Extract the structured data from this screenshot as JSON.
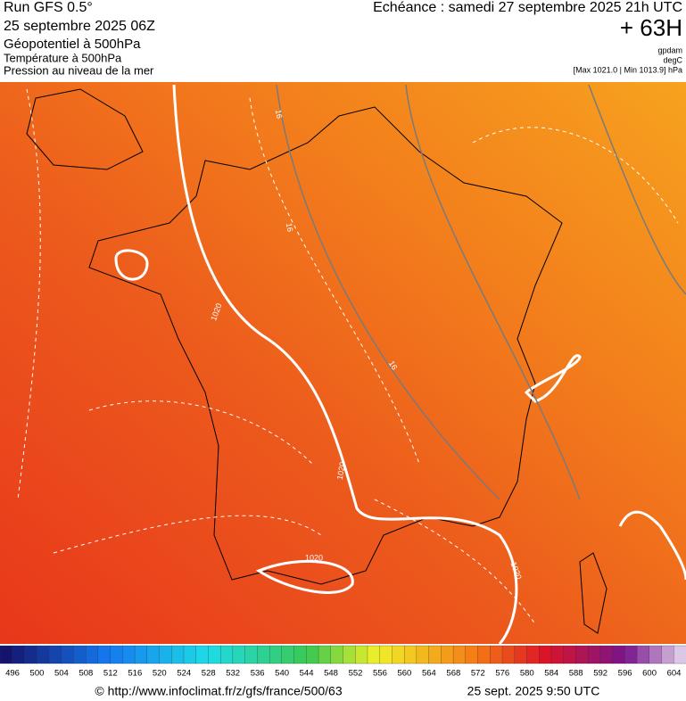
{
  "header": {
    "run": "Run GFS 0.5°",
    "date": "25 septembre 2025 06Z",
    "fields": [
      "Géopotentiel à 500hPa",
      "Température à 500hPa",
      "Pression au niveau de la mer"
    ],
    "echeance": "Echéance : samedi 27 septembre 2025 21h UTC",
    "lead": "+ 63H",
    "units": [
      "gpdam",
      "degC",
      "[Max 1021.0 | Min 1013.9] hPa"
    ]
  },
  "contour_labels": [
    "1020",
    "1020",
    "1020",
    "1020",
    "16",
    "16",
    "16"
  ],
  "colorbar": {
    "labels": [
      496,
      500,
      504,
      508,
      512,
      516,
      520,
      524,
      528,
      532,
      536,
      540,
      544,
      548,
      552,
      556,
      560,
      564,
      568,
      572,
      576,
      580,
      584,
      588,
      592,
      596,
      600,
      604
    ]
  },
  "footer": {
    "url": "© http://www.infoclimat.fr/z/gfs/france/500/63",
    "timestamp": "25 sept. 2025  9:50 UTC"
  }
}
